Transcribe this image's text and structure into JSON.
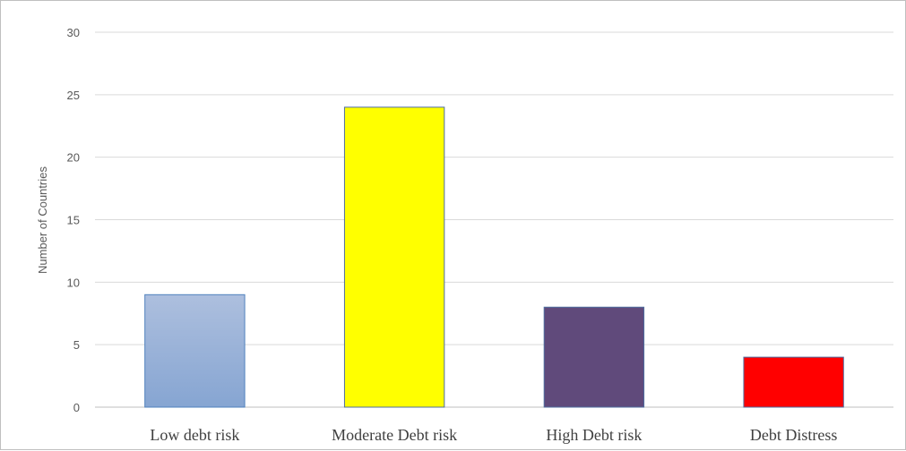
{
  "chart_data": {
    "type": "bar",
    "ylabel": "Number of Countries",
    "xlabel": "",
    "ylim": [
      0,
      30
    ],
    "yticks": [
      "0",
      "5",
      "10",
      "15",
      "20",
      "25",
      "30"
    ],
    "grid": true,
    "categories": [
      "Low debt risk",
      "Moderate Debt risk",
      "High Debt risk",
      "Debt Distress"
    ],
    "values": [
      9,
      24,
      8,
      4
    ],
    "colors": [
      "#95b3d7",
      "#ffff00",
      "#604a7b",
      "#ff0000"
    ]
  }
}
